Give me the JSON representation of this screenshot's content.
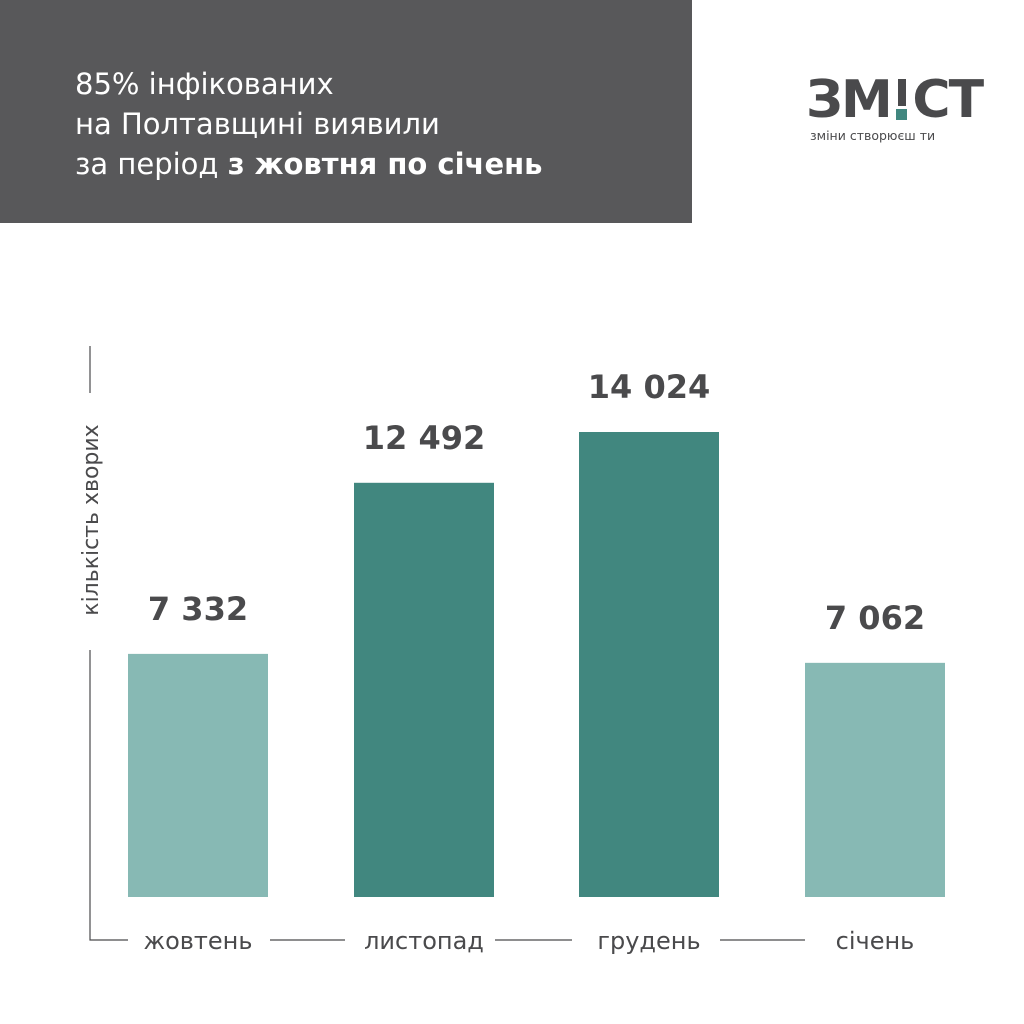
{
  "header": {
    "line1": "85% інфікованих",
    "line2": "на Полтавщині виявили",
    "line3_prefix": "за період ",
    "line3_bold": "з жовтня по січень"
  },
  "logo": {
    "word_start": "ЗМ",
    "word_bang": "!",
    "word_end": "СТ",
    "tagline": "зміни створюєш ти"
  },
  "colors": {
    "header_bg": "#58585a",
    "bar_dark": "#41877f",
    "bar_light": "#87b9b4",
    "text": "#4a4a4c"
  },
  "chart_data": {
    "type": "bar",
    "categories": [
      "жовтень",
      "листопад",
      "грудень",
      "січень"
    ],
    "values": [
      7332,
      12492,
      14024,
      7062
    ],
    "value_labels": [
      "7 332",
      "12 492",
      "14 024",
      "7 062"
    ],
    "bar_colors": [
      "#87b9b4",
      "#41877f",
      "#41877f",
      "#87b9b4"
    ],
    "ylabel": "кількість хворих",
    "xlabel": "",
    "grid": false,
    "legend": "none"
  }
}
